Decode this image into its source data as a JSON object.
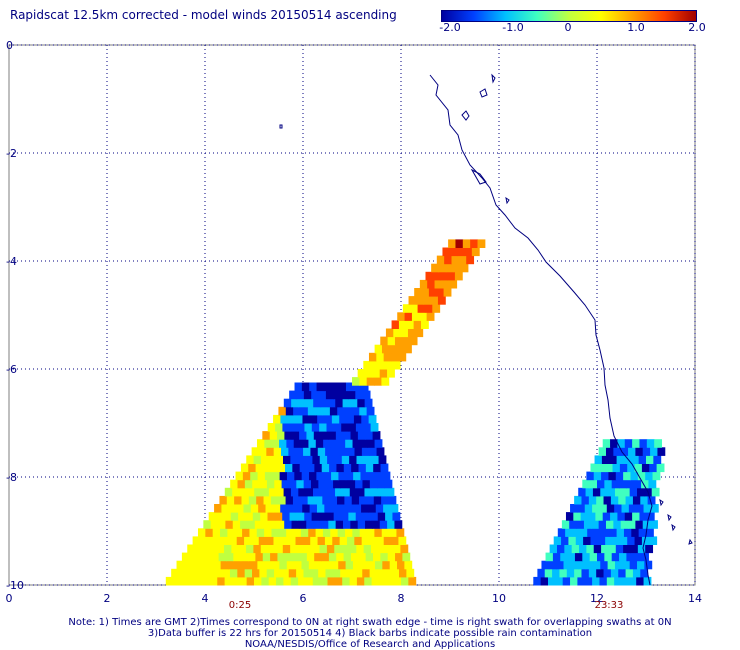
{
  "title": "Rapidscat 12.5km corrected - model winds 20150514 ascending",
  "colorbar": {
    "labels": [
      "-2.0",
      "-1.0",
      "0",
      "1.0",
      "2.0"
    ],
    "colors": [
      "#0000a0",
      "#0040ff",
      "#00c0ff",
      "#40ffc0",
      "#c0ff40",
      "#ffff00",
      "#ffa000",
      "#ff4000",
      "#a00000"
    ]
  },
  "axes": {
    "x_ticks": [
      "0",
      "2",
      "4",
      "6",
      "8",
      "10",
      "12",
      "14"
    ],
    "y_ticks": [
      "0",
      "-2",
      "-4",
      "-6",
      "-8",
      "-10"
    ],
    "grid": true
  },
  "time_labels": {
    "left": "0:25",
    "right": "23:33",
    "color": "#8b0000"
  },
  "notes": {
    "line1": "Note: 1) Times are GMT 2)Times correspond to 0N at right swath edge - time is right swath for overlapping swaths at 0N",
    "line2": "3)Data buffer is 22 hrs for 20150514 4) Black barbs indicate possible rain contamination",
    "line3": "NOAA/NESDIS/Office of Research and Applications"
  },
  "chart_data": {
    "type": "heatmap",
    "title": "Rapidscat 12.5km corrected - model winds 20150514 ascending",
    "x_range": [
      0,
      14
    ],
    "y_range": [
      -10,
      0
    ],
    "value_range": [
      -2.0,
      2.0
    ],
    "swaths": [
      {
        "time": "0:25",
        "x_extent": [
          3.2,
          9.6
        ],
        "y_extent": [
          -10,
          -3.7
        ]
      },
      {
        "time": "23:33",
        "x_extent": [
          10.7,
          13.3
        ],
        "y_extent": [
          -10,
          -7.3
        ]
      }
    ]
  }
}
